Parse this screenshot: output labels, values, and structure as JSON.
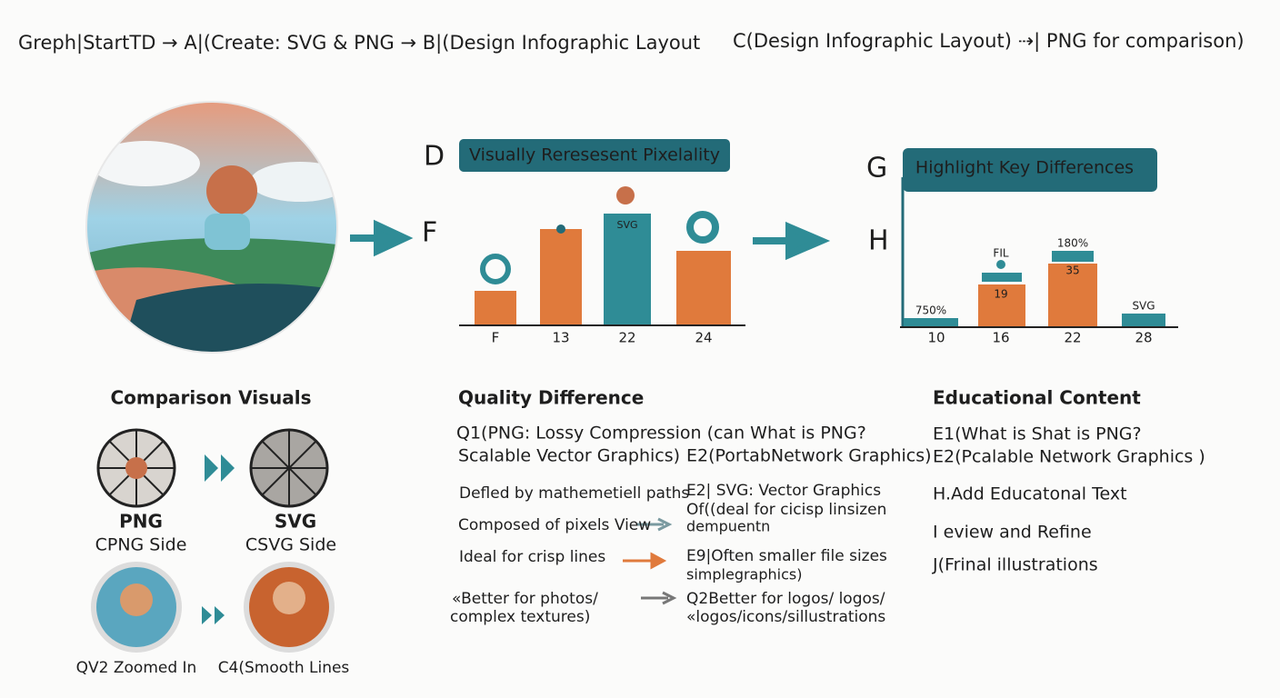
{
  "header": {
    "flow": "Greph|StartTD → A|(Create: SVG & PNG → B|(Design Infographic Layout",
    "flow2": "C(Design Infographic Layout) ⇢| PNG for comparison)"
  },
  "chart_left": {
    "letter_top": "D",
    "letter_side": "F",
    "banner": "Visually Reresesent Pixelality",
    "bar_label": "SVG",
    "x_labels": [
      "F",
      "13",
      "22",
      "24"
    ]
  },
  "chart_right": {
    "letter_top": "G",
    "letter_side": "H",
    "banner": "Highlight Key Differences",
    "bar_labels": [
      "750%",
      "FIL",
      "19",
      "180%",
      "35",
      "SVG"
    ],
    "x_labels": [
      "10",
      "16",
      "22",
      "28"
    ]
  },
  "comparison": {
    "title": "Comparison Visuals",
    "png": "PNG",
    "png_side": "CPNG Side",
    "svg": "SVG",
    "svg_side": "CSVG Side",
    "zoomed": "QV2 Zoomed In",
    "smooth": "C4(Smooth Lines"
  },
  "quality": {
    "title": "Quality Difference",
    "left": [
      "Q1(PNG: Lossy Compression (can What is PNG?",
      "Scalable Vector Graphics)",
      "Defled by mathemetiell paths",
      "Composed of pixels View",
      "Ideal for crisp lines",
      "«Better for photos/",
      "complex textures)"
    ],
    "right": [
      "E2(PortabNetwork Graphics)",
      "E2| SVG: Vector Graphics",
      "Of((deal for cicisp linsizen",
      "dempuentn",
      "E9|Often smaller file sizes",
      "simplegraphics)",
      "Q2Better for logos/ logos/",
      "«logos/icons/sillustrations"
    ]
  },
  "education": {
    "title": "Educational Content",
    "items": [
      "E1(What is Shat is PNG?",
      "E2(Pcalable Network Graphics )",
      "H.Add Educatonal Text",
      "I eview and Refine",
      "J(Frinal illustrations"
    ]
  }
}
